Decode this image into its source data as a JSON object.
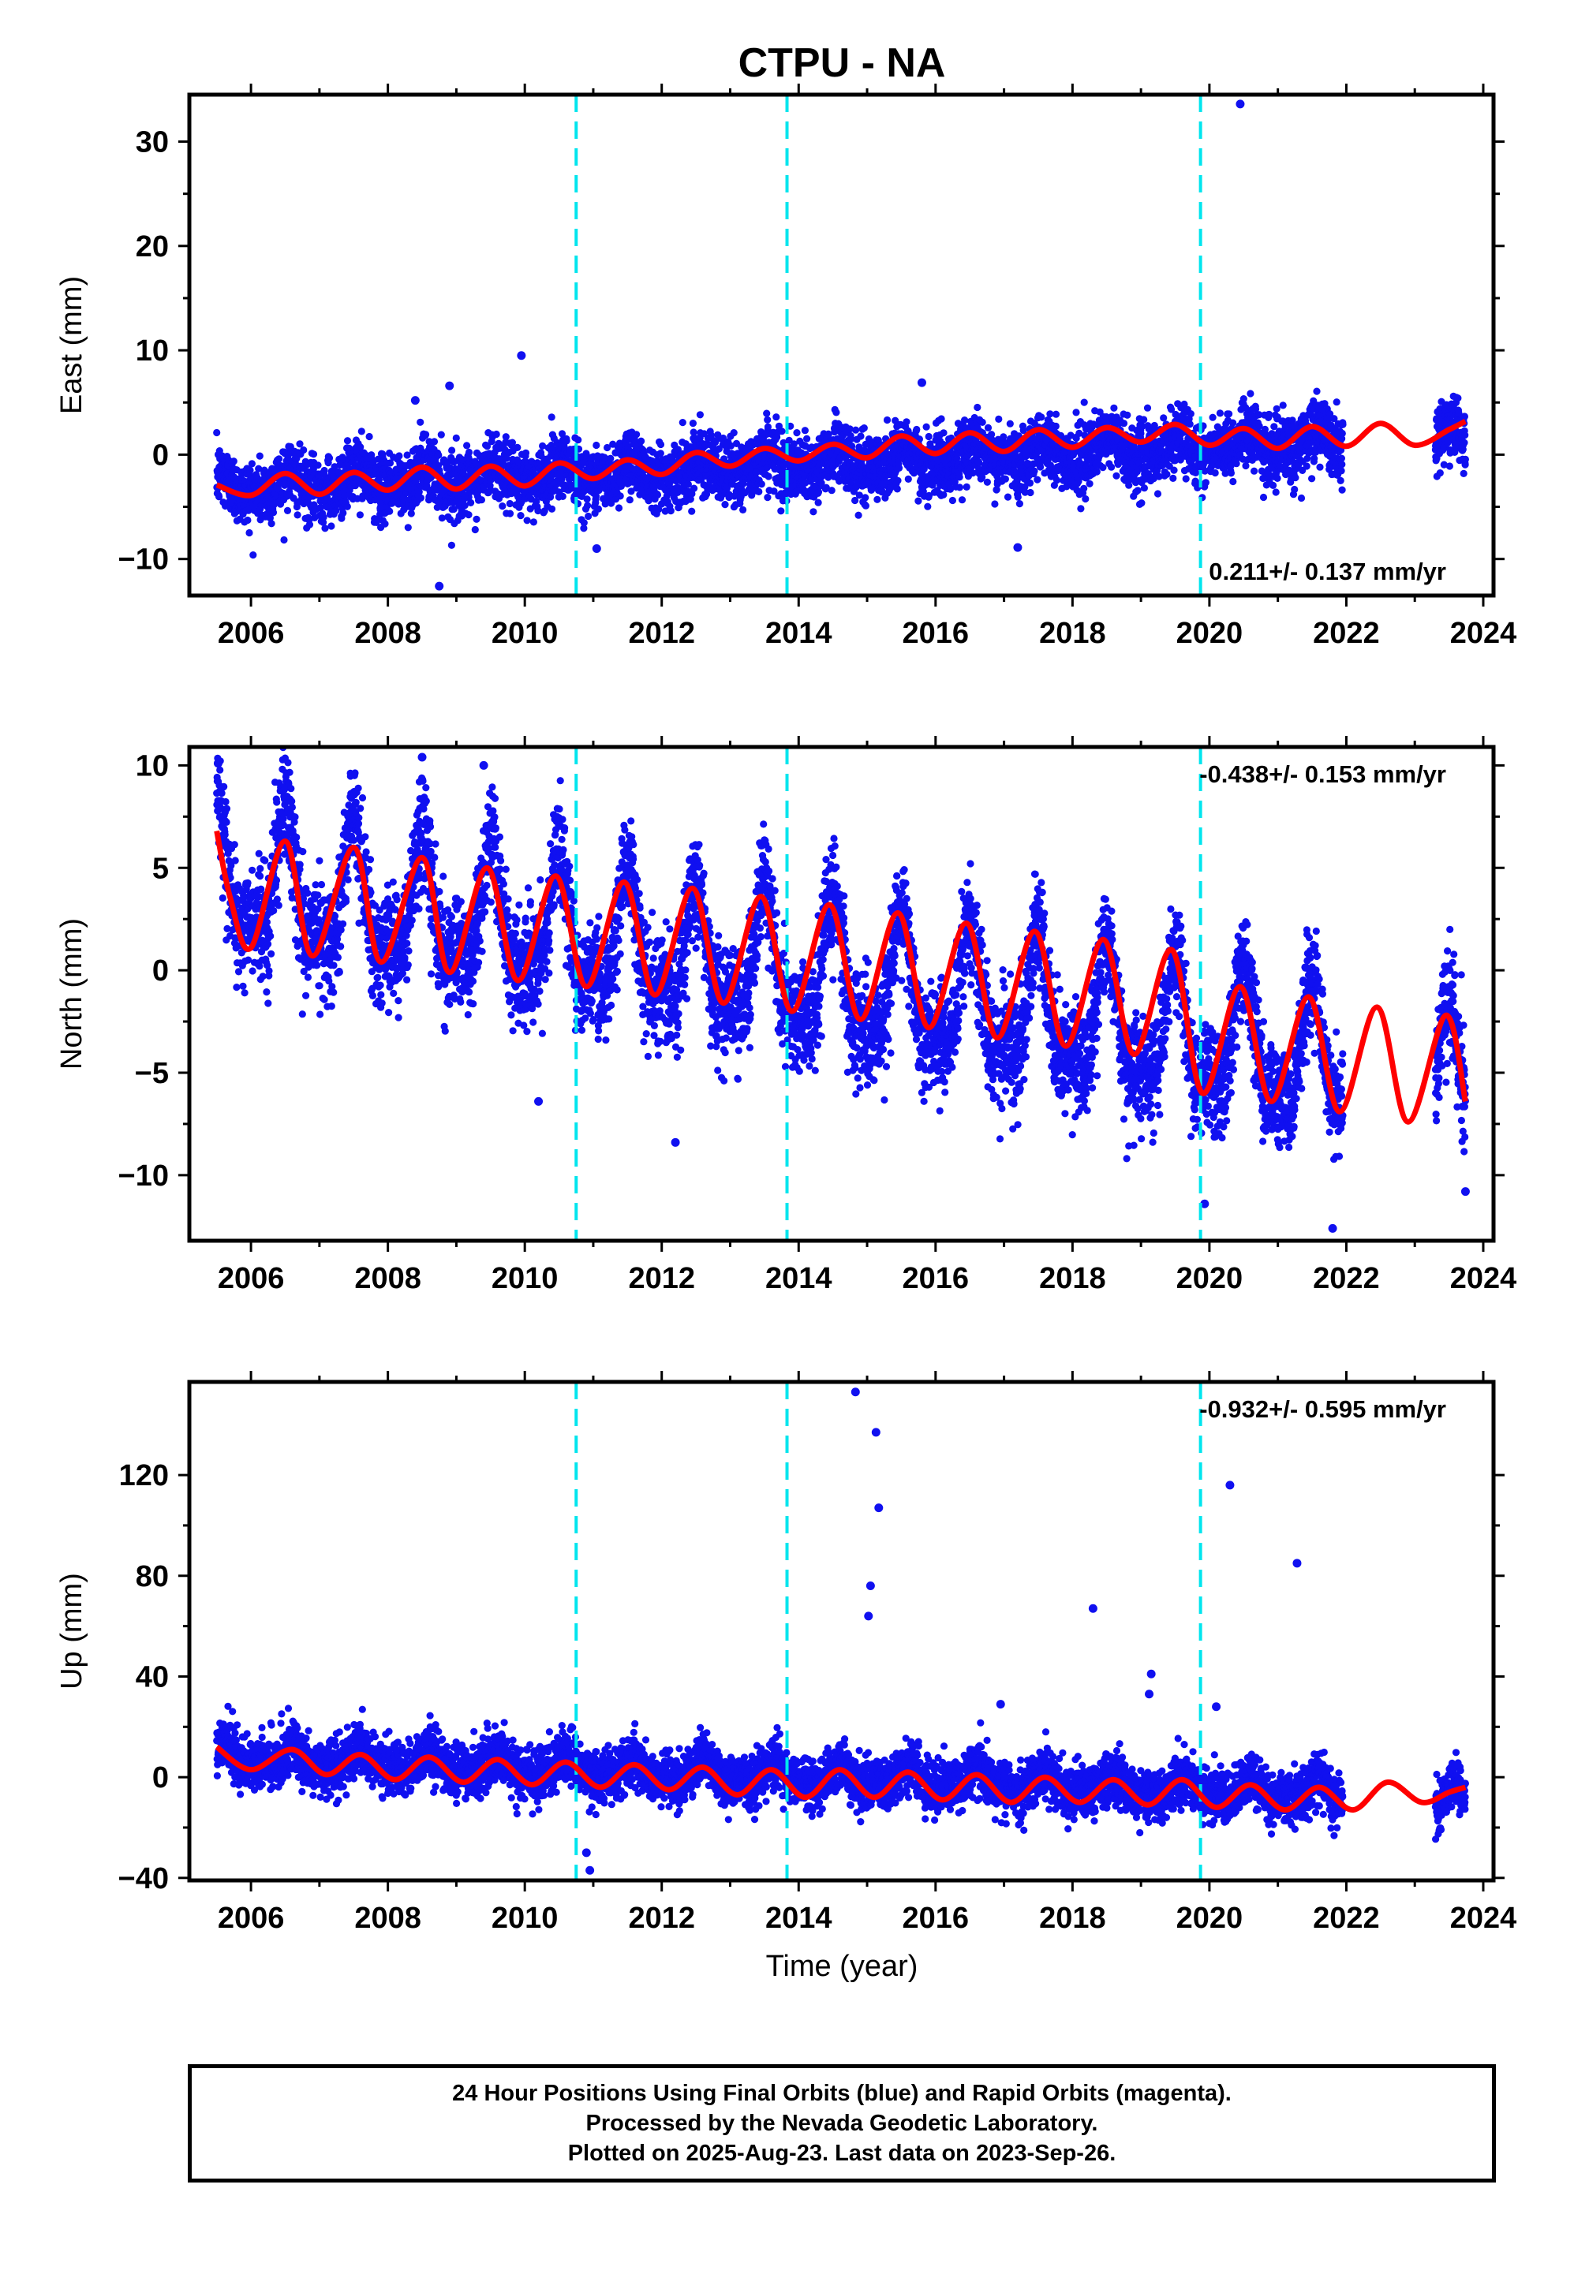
{
  "title": "CTPU - NA",
  "xlabel": "Time (year)",
  "caption": [
    "24 Hour Positions Using Final Orbits (blue) and Rapid Orbits (magenta).",
    "Processed by the Nevada Geodetic Laboratory.",
    "Plotted on 2025-Aug-23. Last data on 2023-Sep-26."
  ],
  "colors": {
    "points": "#1010f0",
    "model": "#ff0000",
    "steps": "#00e5ee",
    "axes": "#000000"
  },
  "chart_data": [
    {
      "type": "scatter",
      "component": "east",
      "ylabel": "East (mm)",
      "xlim": [
        2005.1,
        2024.15
      ],
      "ylim": [
        -13.5,
        34.5
      ],
      "yticks": [
        -10,
        0,
        10,
        20,
        30
      ],
      "xticks": [
        2006,
        2008,
        2010,
        2012,
        2014,
        2016,
        2018,
        2020,
        2022,
        2024
      ],
      "rate_label": "0.211+/- 0.137 mm/yr",
      "rate_position": "bottom-right",
      "step_lines": [
        2010.75,
        2013.83,
        2019.87
      ],
      "trend_anchor": {
        "x": [
          2005.5,
          2021.9
        ],
        "y": [
          -3.2,
          1.2
        ]
      },
      "seasonal": {
        "amplitude": 1.1,
        "phase_year": 0.55
      },
      "noise_sd": 1.5,
      "data_gap": [
        2021.95,
        2023.3
      ],
      "end": 2023.74,
      "model_curve": {
        "x": [
          2005.5,
          2006.0,
          2006.5,
          2007.0,
          2007.5,
          2008.0,
          2008.5,
          2009.0,
          2009.5,
          2010.0,
          2010.5,
          2011.0,
          2011.5,
          2012.0,
          2012.5,
          2013.0,
          2013.5,
          2014.0,
          2014.5,
          2015.0,
          2015.5,
          2016.0,
          2016.5,
          2017.0,
          2017.5,
          2018.0,
          2018.5,
          2019.0,
          2019.5,
          2020.0,
          2020.5,
          2021.0,
          2021.5,
          2022.0,
          2022.5,
          2023.0,
          2023.5,
          2023.74
        ],
        "y": [
          -2.9,
          -3.9,
          -1.8,
          -3.8,
          -1.7,
          -3.4,
          -1.2,
          -3.3,
          -1.1,
          -3.0,
          -0.8,
          -2.3,
          -0.5,
          -1.9,
          0.2,
          -1.1,
          0.6,
          -0.6,
          1.0,
          -0.3,
          1.8,
          0.1,
          2.1,
          0.3,
          2.4,
          0.7,
          2.6,
          1.2,
          2.9,
          0.9,
          2.5,
          0.6,
          2.7,
          0.8,
          3.0,
          0.9,
          2.4,
          3.2
        ]
      },
      "outliers": [
        {
          "x": 2008.75,
          "y": -12.6
        },
        {
          "x": 2009.95,
          "y": 9.5
        },
        {
          "x": 2011.05,
          "y": -9.0
        },
        {
          "x": 2017.2,
          "y": -8.9
        },
        {
          "x": 2020.45,
          "y": 33.6
        },
        {
          "x": 2008.4,
          "y": 5.2
        },
        {
          "x": 2008.9,
          "y": 6.6
        },
        {
          "x": 2015.8,
          "y": 6.9
        }
      ]
    },
    {
      "type": "scatter",
      "component": "north",
      "ylabel": "North (mm)",
      "xlim": [
        2005.1,
        2024.15
      ],
      "ylim": [
        -13.2,
        10.9
      ],
      "yticks": [
        -10,
        -5,
        0,
        5,
        10
      ],
      "xticks": [
        2006,
        2008,
        2010,
        2012,
        2014,
        2016,
        2018,
        2020,
        2022,
        2024
      ],
      "rate_label": "-0.438+/- 0.153 mm/yr",
      "rate_position": "top-right",
      "step_lines": [
        2010.75,
        2013.83,
        2019.87
      ],
      "trend_anchor": {
        "x": [
          2005.5,
          2021.9
        ],
        "y": [
          4.4,
          -4.6
        ]
      },
      "seasonal": {
        "amplitude": 3.6,
        "phase_year": 0.5
      },
      "noise_sd": 1.3,
      "data_gap": [
        2021.95,
        2023.3
      ],
      "end": 2023.74,
      "model_curve": {
        "x": [
          2005.5,
          2005.7,
          2006.0,
          2006.5,
          2006.9,
          2007.5,
          2007.9,
          2008.5,
          2008.9,
          2009.45,
          2009.9,
          2010.45,
          2010.9,
          2011.45,
          2011.9,
          2012.45,
          2012.9,
          2013.45,
          2013.9,
          2014.45,
          2014.9,
          2015.45,
          2015.9,
          2016.45,
          2016.9,
          2017.45,
          2017.9,
          2018.45,
          2018.9,
          2019.45,
          2019.9,
          2020.45,
          2020.9,
          2021.45,
          2021.9,
          2022.45,
          2022.9,
          2023.45,
          2023.74
        ],
        "y": [
          6.8,
          3.5,
          1.1,
          6.3,
          0.7,
          6.0,
          0.4,
          5.5,
          -0.1,
          5.0,
          -0.5,
          4.6,
          -0.8,
          4.3,
          -1.2,
          4.0,
          -1.6,
          3.6,
          -2.0,
          3.2,
          -2.4,
          2.8,
          -2.8,
          2.3,
          -3.3,
          1.9,
          -3.7,
          1.5,
          -4.1,
          1.0,
          -6.0,
          -0.8,
          -6.4,
          -1.3,
          -6.9,
          -1.8,
          -7.4,
          -2.2,
          -6.4
        ]
      },
      "outliers": [
        {
          "x": 2005.52,
          "y": 10.1
        },
        {
          "x": 2008.5,
          "y": 10.4
        },
        {
          "x": 2009.4,
          "y": 10.0
        },
        {
          "x": 2010.2,
          "y": -6.4
        },
        {
          "x": 2012.2,
          "y": -8.4
        },
        {
          "x": 2019.93,
          "y": -11.4
        },
        {
          "x": 2021.8,
          "y": -12.6
        },
        {
          "x": 2023.74,
          "y": -10.8
        }
      ]
    },
    {
      "type": "scatter",
      "component": "up",
      "ylabel": "Up (mm)",
      "xlim": [
        2005.1,
        2024.15
      ],
      "ylim": [
        -41,
        157
      ],
      "yticks": [
        -40,
        0,
        40,
        80,
        120
      ],
      "xticks": [
        2006,
        2008,
        2010,
        2012,
        2014,
        2016,
        2018,
        2020,
        2022,
        2024
      ],
      "rate_label": "-0.932+/- 0.595 mm/yr",
      "rate_position": "top-right",
      "step_lines": [
        2010.75,
        2013.83,
        2019.87
      ],
      "trend_anchor": {
        "x": [
          2005.5,
          2021.9
        ],
        "y": [
          8.0,
          -7.0
        ]
      },
      "seasonal": {
        "amplitude": 4.5,
        "phase_year": 0.6
      },
      "noise_sd": 5.0,
      "data_gap": [
        2021.95,
        2023.3
      ],
      "end": 2023.74,
      "model_curve": {
        "x": [
          2005.5,
          2006.0,
          2006.6,
          2007.1,
          2007.6,
          2008.1,
          2008.6,
          2009.1,
          2009.6,
          2010.1,
          2010.6,
          2011.1,
          2011.6,
          2012.1,
          2012.6,
          2013.1,
          2013.6,
          2014.1,
          2014.6,
          2015.1,
          2015.6,
          2016.1,
          2016.6,
          2017.1,
          2017.6,
          2018.1,
          2018.6,
          2019.1,
          2019.6,
          2020.1,
          2020.6,
          2021.1,
          2021.6,
          2022.1,
          2022.6,
          2023.1,
          2023.5,
          2023.74
        ],
        "y": [
          12,
          3,
          11,
          1,
          9,
          -1,
          8,
          -2,
          7,
          -3,
          6,
          -4,
          5,
          -5,
          4,
          -7,
          3,
          -8,
          3,
          -8,
          2,
          -9,
          1,
          -10,
          0,
          -10,
          -1,
          -11,
          -1,
          -12,
          -3,
          -13,
          -4,
          -13,
          -2,
          -10,
          -6,
          -4
        ]
      },
      "outliers": [
        {
          "x": 2014.83,
          "y": 153
        },
        {
          "x": 2015.13,
          "y": 137
        },
        {
          "x": 2015.17,
          "y": 107
        },
        {
          "x": 2015.05,
          "y": 76
        },
        {
          "x": 2015.02,
          "y": 64
        },
        {
          "x": 2018.3,
          "y": 67
        },
        {
          "x": 2020.3,
          "y": 116
        },
        {
          "x": 2021.28,
          "y": 85
        },
        {
          "x": 2019.15,
          "y": 41
        },
        {
          "x": 2019.12,
          "y": 33
        },
        {
          "x": 2010.95,
          "y": -37
        },
        {
          "x": 2010.9,
          "y": -30
        },
        {
          "x": 2020.1,
          "y": 28
        },
        {
          "x": 2016.95,
          "y": 29
        }
      ]
    }
  ]
}
